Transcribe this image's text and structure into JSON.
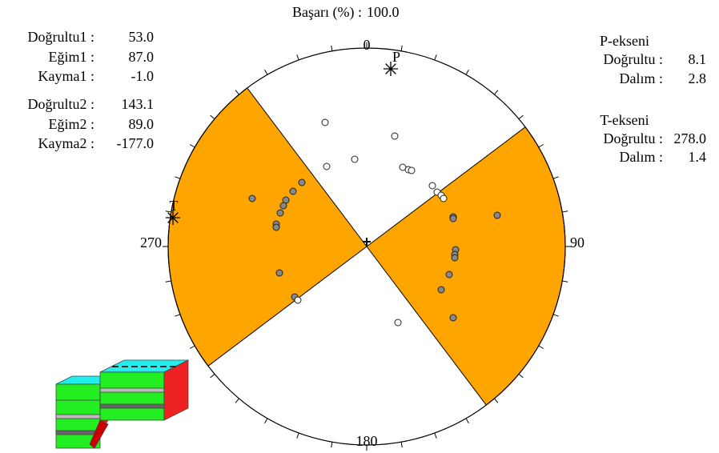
{
  "header": {
    "label": "Başarı (%) :",
    "value": "100.0"
  },
  "plane1": [
    {
      "label": "Doğrultu1 :",
      "value": "53.0"
    },
    {
      "label": "Eğim1 :",
      "value": "87.0"
    },
    {
      "label": "Kayma1 :",
      "value": "-1.0"
    }
  ],
  "plane2": [
    {
      "label": "Doğrultu2 :",
      "value": "143.1"
    },
    {
      "label": "Eğim2 :",
      "value": "89.0"
    },
    {
      "label": "Kayma2 :",
      "value": "-177.0"
    }
  ],
  "p_axis": {
    "title": "P-ekseni",
    "rows": [
      {
        "label": "Doğrultu :",
        "value": "8.1"
      },
      {
        "label": "Dalım :",
        "value": "2.8"
      }
    ]
  },
  "t_axis": {
    "title": "T-ekseni",
    "rows": [
      {
        "label": "Doğrultu :",
        "value": "278.0"
      },
      {
        "label": "Dalım :",
        "value": "1.4"
      }
    ]
  },
  "compass": [
    "0",
    "90",
    "180",
    "270"
  ],
  "markers": [
    "P",
    "T"
  ]
}
